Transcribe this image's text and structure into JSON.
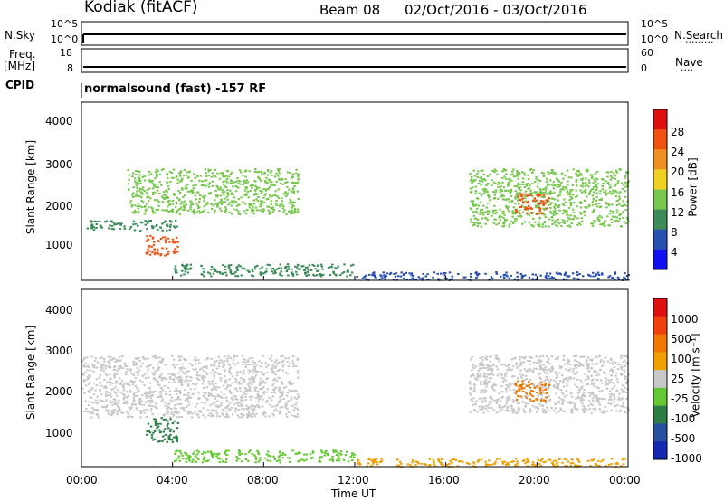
{
  "header": {
    "station": "Kodiak (fitACF)",
    "beam": "Beam 08",
    "dates": "02/Oct/2016 - 03/Oct/2016"
  },
  "top_panels": {
    "nsky_label": "N.Sky",
    "nsearch_label": "N.Search",
    "noise_ticks_left": [
      "10^5",
      "10^0"
    ],
    "noise_ticks_right": [
      "10^5",
      "10^0"
    ],
    "freq_label": "Freq.",
    "freq_unit": "[MHz]",
    "freq_ticks": [
      "18",
      "8"
    ],
    "nave_label": "Nave",
    "nave_ticks": [
      "60",
      "0"
    ],
    "cpid_label": "CPID",
    "cpid_text": "normalsound (fast) -157 RF"
  },
  "chart_data": [
    {
      "type": "heatmap",
      "name": "power",
      "ylabel": "Slant Range [km]",
      "xlabel": "Time UT",
      "xticks": [
        "00:00",
        "04:00",
        "08:00",
        "12:00",
        "16:00",
        "20:00",
        "00:00"
      ],
      "yticks": [
        "1000",
        "2000",
        "3000",
        "4000"
      ],
      "xlim_hours": [
        0,
        24
      ],
      "ylim_km": [
        180,
        4500
      ],
      "colorbar": {
        "label": "Power [dB]",
        "ticks": [
          "4",
          "8",
          "12",
          "16",
          "20",
          "24",
          "28"
        ],
        "colors": [
          "#1010f0",
          "#2850b0",
          "#3c8c5a",
          "#78c850",
          "#f0d020",
          "#f09020",
          "#f05010",
          "#e01010"
        ]
      },
      "features": [
        {
          "t0": 0.0,
          "t1": 4.2,
          "r0": 1400,
          "r1": 1650,
          "level": 2
        },
        {
          "t0": 2.0,
          "t1": 9.5,
          "r0": 1800,
          "r1": 2900,
          "level": 3
        },
        {
          "t0": 2.8,
          "t1": 4.2,
          "r0": 800,
          "r1": 1300,
          "level": 6
        },
        {
          "t0": 4.0,
          "t1": 12.0,
          "r0": 300,
          "r1": 600,
          "level": 2
        },
        {
          "t0": 12.0,
          "t1": 24.0,
          "r0": 200,
          "r1": 400,
          "level": 1
        },
        {
          "t0": 17.0,
          "t1": 24.0,
          "r0": 1500,
          "r1": 2900,
          "level": 3
        },
        {
          "t0": 19.0,
          "t1": 20.5,
          "r0": 1800,
          "r1": 2300,
          "level": 6
        }
      ]
    },
    {
      "type": "heatmap",
      "name": "velocity",
      "ylabel": "Slant Range [km]",
      "xlabel": "Time UT",
      "xticks": [
        "00:00",
        "04:00",
        "08:00",
        "12:00",
        "16:00",
        "20:00",
        "00:00"
      ],
      "yticks": [
        "1000",
        "2000",
        "3000",
        "4000"
      ],
      "xlim_hours": [
        0,
        24
      ],
      "ylim_km": [
        180,
        4500
      ],
      "colorbar": {
        "label": "Velocity [m s⁻¹]",
        "ticks": [
          "1000",
          "500",
          "100",
          "25",
          "-25",
          "-100",
          "-500",
          "-1000"
        ],
        "colors": [
          "#1428b4",
          "#2850a0",
          "#2d7d46",
          "#64c832",
          "#c8c8c8",
          "#f0a000",
          "#f07800",
          "#f04010",
          "#e01010"
        ]
      },
      "features": [
        {
          "t0": 0.0,
          "t1": 9.5,
          "r0": 1400,
          "r1": 2900,
          "level": 4
        },
        {
          "t0": 2.8,
          "t1": 4.2,
          "r0": 800,
          "r1": 1400,
          "level": 2
        },
        {
          "t0": 4.0,
          "t1": 12.0,
          "r0": 300,
          "r1": 600,
          "level": 3
        },
        {
          "t0": 12.0,
          "t1": 24.0,
          "r0": 200,
          "r1": 400,
          "level": 5
        },
        {
          "t0": 17.0,
          "t1": 24.0,
          "r0": 1500,
          "r1": 2900,
          "level": 4
        },
        {
          "t0": 19.0,
          "t1": 20.5,
          "r0": 1800,
          "r1": 2300,
          "level": 6
        }
      ]
    }
  ]
}
